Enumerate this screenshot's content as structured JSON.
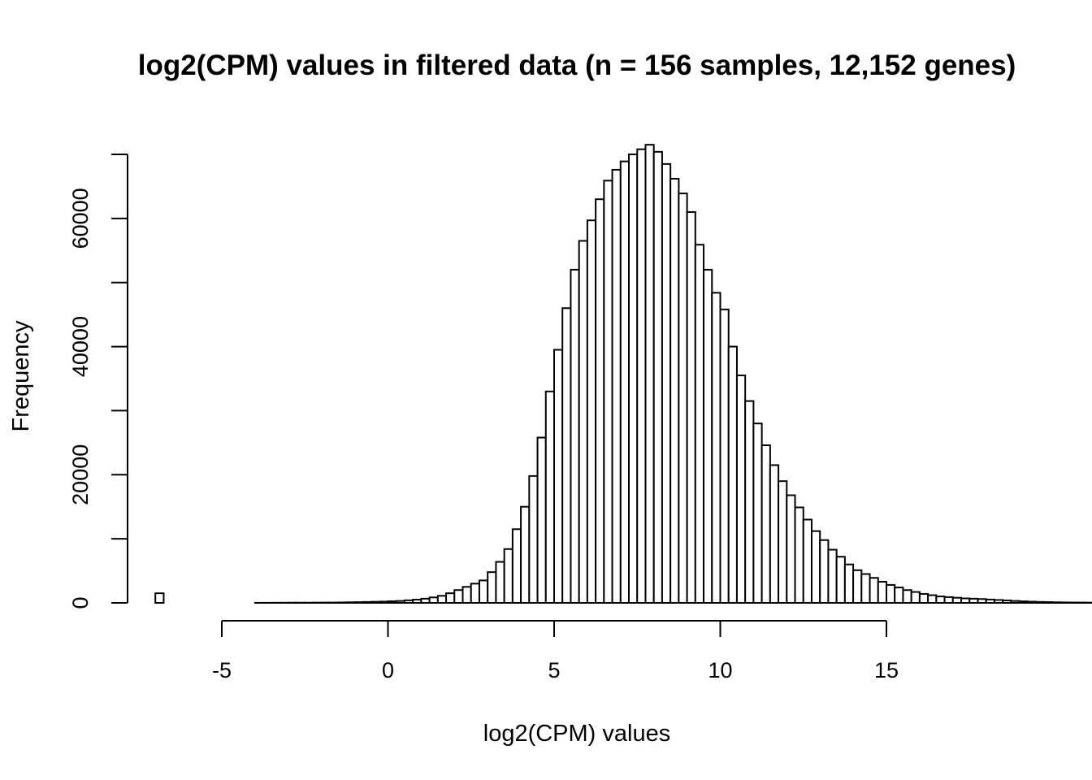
{
  "chart_data": {
    "type": "bar",
    "title": "log2(CPM) values in filtered data (n = 156 samples, 12,152 genes)",
    "xlabel": "log2(CPM) values",
    "ylabel": "Frequency",
    "x_ticks": [
      -5,
      0,
      5,
      10,
      15
    ],
    "x_tick_labels": [
      "-5",
      "0",
      "5",
      "10",
      "15"
    ],
    "y_ticks": [
      0,
      20000,
      40000,
      60000
    ],
    "y_tick_labels": [
      "0",
      "20000",
      "40000",
      "60000"
    ],
    "y_minor_ticks": [
      10000,
      30000,
      50000,
      70000
    ],
    "xlim": [
      -6.9,
      18.2
    ],
    "ylim": [
      0,
      71500
    ],
    "grid": false,
    "legend": "none",
    "bin_width": 0.25,
    "bin_start": -7.0,
    "values": [
      1500,
      0,
      0,
      0,
      0,
      0,
      0,
      0,
      0,
      0,
      0,
      0,
      10,
      10,
      20,
      20,
      30,
      30,
      30,
      40,
      50,
      50,
      70,
      90,
      110,
      140,
      170,
      200,
      250,
      300,
      400,
      500,
      650,
      850,
      1100,
      1500,
      2000,
      2500,
      3000,
      3500,
      4800,
      6400,
      8400,
      11500,
      15000,
      19800,
      25800,
      33000,
      39500,
      46000,
      52000,
      56500,
      59700,
      63000,
      65900,
      67600,
      68900,
      70000,
      70800,
      71500,
      70400,
      68500,
      66200,
      63900,
      61000,
      55900,
      52000,
      48400,
      45800,
      40000,
      35500,
      31500,
      28000,
      24600,
      21500,
      19000,
      16800,
      14900,
      13000,
      11200,
      9800,
      8300,
      7200,
      6000,
      5100,
      4500,
      3900,
      3300,
      2800,
      2400,
      2000,
      1700,
      1400,
      1200,
      1000,
      900,
      800,
      700,
      650,
      600,
      520,
      450,
      380,
      300,
      240,
      190,
      150,
      120,
      90,
      70,
      60,
      50,
      40,
      30,
      30,
      20,
      20,
      15,
      10,
      10,
      8,
      6,
      5,
      5,
      4,
      4,
      3,
      3,
      2,
      2,
      2,
      1,
      1,
      1,
      0
    ]
  }
}
